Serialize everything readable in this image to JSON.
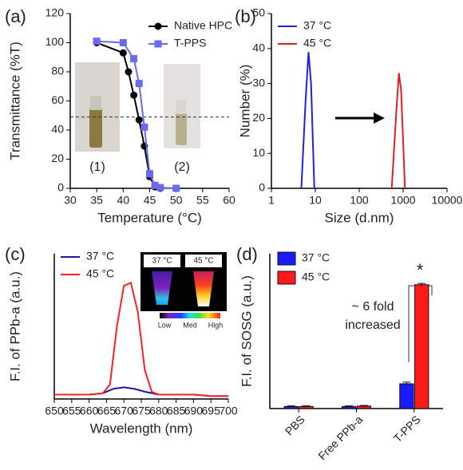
{
  "chart_data": [
    {
      "type": "line",
      "panel_label": "(a)",
      "xlabel": "Temperature (°C)",
      "ylabel": "Transmittance (%T)",
      "xlim": [
        30,
        60
      ],
      "xticks": [
        30,
        35,
        40,
        45,
        50,
        55,
        60
      ],
      "ylim": [
        0,
        120
      ],
      "yticks": [
        0,
        20,
        40,
        60,
        80,
        100,
        120
      ],
      "reference_line": 49,
      "annotations": [
        "(1)",
        "(2)"
      ],
      "legend_position": "upper right",
      "series": [
        {
          "name": "Native HPC",
          "color": "#000000",
          "marker": "circle",
          "x": [
            35,
            40,
            41,
            42,
            43,
            44,
            45,
            46,
            47
          ],
          "values": [
            100,
            93,
            80,
            64,
            47,
            29,
            8,
            1,
            0
          ]
        },
        {
          "name": "T-PPS",
          "color": "#6a6aef",
          "marker": "square",
          "x": [
            35,
            40,
            42,
            43,
            44,
            45,
            46,
            47,
            50
          ],
          "values": [
            101,
            100,
            89,
            72,
            42,
            10,
            2,
            0.5,
            0
          ]
        }
      ]
    },
    {
      "type": "line",
      "panel_label": "(b)",
      "xlabel": "Size (d.nm)",
      "ylabel": "Number (%)",
      "xscale": "log",
      "xlim": [
        1,
        10000
      ],
      "xticks": [
        1,
        10,
        100,
        1000,
        10000
      ],
      "ylim": [
        0,
        50
      ],
      "yticks": [
        0,
        10,
        20,
        30,
        40,
        50
      ],
      "legend_position": "upper left",
      "series": [
        {
          "name": "37 °C",
          "color": "#2020e0",
          "x": [
            4.8,
            6,
            7,
            8,
            9.5
          ],
          "values": [
            0,
            25,
            39,
            30,
            0
          ]
        },
        {
          "name": "45 °C",
          "color": "#e02020",
          "x": [
            550,
            700,
            800,
            900,
            1100
          ],
          "values": [
            0,
            22,
            33,
            28,
            0
          ]
        }
      ]
    },
    {
      "type": "line",
      "panel_label": "(c)",
      "xlabel": "Wavelength (nm)",
      "ylabel": "F.I. of PPb-a (a.u.)",
      "xlim": [
        650,
        700
      ],
      "xticks": [
        650,
        655,
        660,
        665,
        670,
        675,
        680,
        685,
        690,
        695,
        700
      ],
      "ylim": [
        0,
        100
      ],
      "legend_position": "upper left",
      "inset_labels": [
        "37 °C",
        "45 °C",
        "Low",
        "Med",
        "High"
      ],
      "series": [
        {
          "name": "37 °C",
          "color": "#1a1aa0",
          "x": [
            650,
            655,
            660,
            664,
            667,
            670,
            673,
            676,
            680,
            685,
            690,
            695,
            700
          ],
          "values": [
            3,
            3,
            3,
            4,
            7,
            8,
            7,
            5,
            3,
            3,
            3,
            2,
            2
          ]
        },
        {
          "name": "45 °C",
          "color": "#ff2020",
          "x": [
            650,
            655,
            660,
            664,
            666,
            668,
            670,
            672,
            674,
            676,
            678,
            680,
            685,
            690,
            695,
            700
          ],
          "values": [
            3,
            3,
            3,
            4,
            10,
            50,
            78,
            80,
            60,
            20,
            5,
            3,
            3,
            3,
            2,
            2
          ]
        }
      ]
    },
    {
      "type": "bar",
      "panel_label": "(d)",
      "ylabel": "F.I. of SOSG (a.u.)",
      "ylim": [
        0,
        75
      ],
      "categories": [
        "PBS",
        "Free PPb-a",
        "T-PPS"
      ],
      "legend_position": "upper left",
      "annotations": [
        "*",
        "~ 6 fold",
        "increased"
      ],
      "series": [
        {
          "name": "37 °C",
          "color": "#1a1aff",
          "values": [
            1,
            1,
            12
          ],
          "errors": [
            0.3,
            0.3,
            0.8
          ]
        },
        {
          "name": "45 °C",
          "color": "#ff1a1a",
          "values": [
            1,
            1.2,
            60
          ],
          "errors": [
            0.3,
            0.3,
            0.6
          ]
        }
      ]
    }
  ]
}
